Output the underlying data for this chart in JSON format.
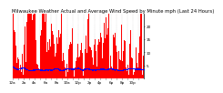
{
  "title": "Milwaukee Weather Actual and Average Wind Speed by Minute mph (Last 24 Hours)",
  "bg_color": "#ffffff",
  "plot_bg_color": "#ffffff",
  "bar_color": "#ff0000",
  "dot_color": "#0000ff",
  "grid_color": "#bbbbbb",
  "num_points": 1440,
  "max_val": 25,
  "ylim": [
    0,
    25
  ],
  "yticks": [
    5,
    10,
    15,
    20
  ],
  "title_fontsize": 3.8,
  "tick_fontsize": 3.0,
  "seed": 42
}
